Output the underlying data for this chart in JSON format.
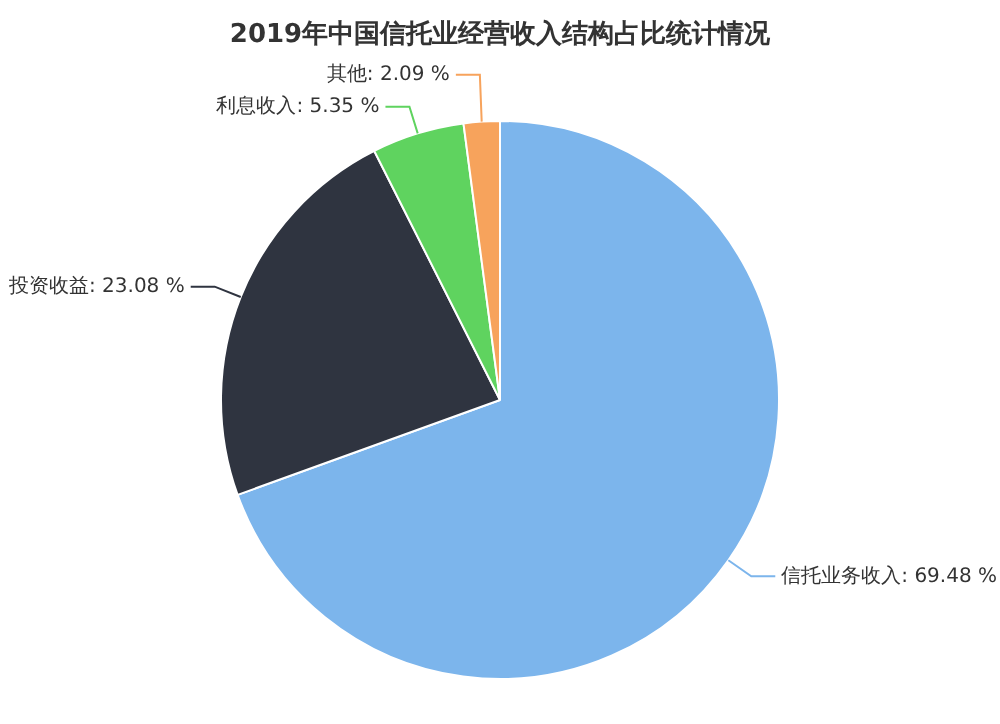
{
  "chart_data": {
    "type": "pie",
    "title": "2019年中国信托业经营收入结构占比统计情况",
    "categories": [
      "信托业务收入",
      "投资收益",
      "利息收入",
      "其他"
    ],
    "values": [
      69.48,
      23.08,
      5.35,
      2.09
    ],
    "value_labels": [
      "69.48 %",
      "23.08 %",
      "5.35 %",
      "2.09 %"
    ],
    "colors": [
      "#7cb5ec",
      "#2f3440",
      "#5fd35f",
      "#f7a35c"
    ],
    "legend": false
  }
}
